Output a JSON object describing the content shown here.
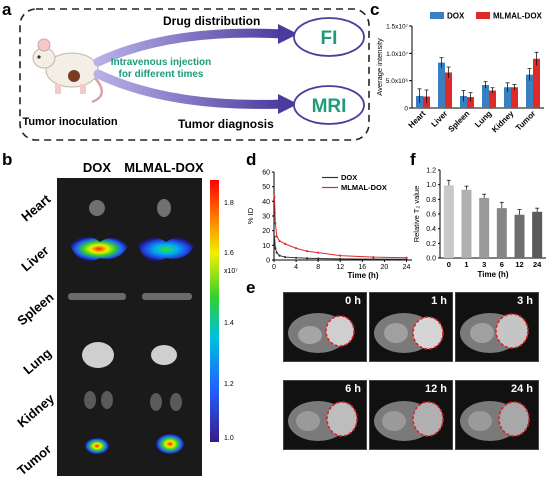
{
  "panel_labels": {
    "a": "a",
    "b": "b",
    "c": "c",
    "d": "d",
    "e": "e",
    "f": "f"
  },
  "panel_a": {
    "drug_distribution": "Drug distribution",
    "injection_line1": "Intravenous injection",
    "injection_line2": "for different times",
    "fi": "FI",
    "mri": "MRI",
    "tumor_inoculation": "Tumor inoculation",
    "tumor_diagnosis": "Tumor diagnosis",
    "colors": {
      "green_text": "#1a9e7a",
      "oval_text": "#1f9b78",
      "arrow": "#4a3c9e"
    }
  },
  "panel_b": {
    "col_headers": [
      "DOX",
      "MLMAL-DOX"
    ],
    "organs": [
      "Heart",
      "Liver",
      "Spleen",
      "Lung",
      "Kidney",
      "Tumor"
    ],
    "colorbar_ticks": [
      "1.8",
      "1.6",
      "1.4",
      "1.2",
      "1.0"
    ],
    "colorbar_unit": "x10⁷"
  },
  "chart_data": [
    {
      "panel": "c",
      "type": "bar",
      "categories": [
        "Heart",
        "Liver",
        "Spleen",
        "Lung",
        "Kidney",
        "Tumor"
      ],
      "series": [
        {
          "name": "DOX",
          "color": "#3a7fc0",
          "values": [
            2200000.0,
            8300000.0,
            2200000.0,
            4200000.0,
            3800000.0,
            6100000.0
          ],
          "errors": [
            1300000.0,
            900000.0,
            1000000.0,
            600000.0,
            800000.0,
            1100000.0
          ]
        },
        {
          "name": "MLMAL-DOX",
          "color": "#e02a2a",
          "values": [
            2100000.0,
            6500000.0,
            2000000.0,
            3200000.0,
            3800000.0,
            9000000.0
          ],
          "errors": [
            1200000.0,
            1000000.0,
            800000.0,
            500000.0,
            500000.0,
            1200000.0
          ]
        }
      ],
      "ylabel": "Average intensity",
      "ylim": [
        0,
        15000000
      ],
      "yticks": [
        "0",
        "5.0x10⁶",
        "1.0x10⁷",
        "1.5x10⁷"
      ],
      "legend": "top"
    },
    {
      "panel": "d",
      "type": "line",
      "series": [
        {
          "name": "DOX",
          "color": "#333333",
          "x": [
            0.083,
            0.25,
            0.5,
            1,
            2,
            4,
            6,
            8,
            12,
            18,
            24
          ],
          "y": [
            16,
            8,
            5,
            3,
            2,
            1.5,
            1.2,
            1.0,
            0.8,
            0.6,
            0.5
          ]
        },
        {
          "name": "MLMAL-DOX",
          "color": "#e02a2a",
          "x": [
            0.083,
            0.25,
            0.5,
            1,
            2,
            4,
            6,
            8,
            12,
            18,
            24
          ],
          "y": [
            43,
            25,
            16,
            13,
            11,
            8,
            6,
            5,
            3,
            2,
            1.5
          ]
        }
      ],
      "xlabel": "Time (h)",
      "ylabel": "% ID",
      "xlim": [
        0,
        25
      ],
      "ylim": [
        0,
        60
      ],
      "xticks": [
        0,
        4,
        8,
        12,
        16,
        20,
        24
      ],
      "yticks": [
        0,
        10,
        20,
        30,
        40,
        50,
        60
      ],
      "legend": "top-right"
    },
    {
      "panel": "f",
      "type": "bar",
      "categories": [
        "0",
        "1",
        "3",
        "6",
        "12",
        "24"
      ],
      "values": [
        0.99,
        0.93,
        0.82,
        0.68,
        0.59,
        0.63
      ],
      "errors": [
        0.07,
        0.05,
        0.05,
        0.08,
        0.07,
        0.05
      ],
      "colors": [
        "#c8c8c8",
        "#b0b0b0",
        "#9a9a9a",
        "#868686",
        "#6e6e6e",
        "#5a5a5a"
      ],
      "xlabel": "Time (h)",
      "ylabel": "Relative T₂ value",
      "ylim": [
        0,
        1.2
      ],
      "yticks": [
        "0.0",
        "0.2",
        "0.4",
        "0.6",
        "0.8",
        "1.0",
        "1.2"
      ]
    }
  ],
  "panel_e": {
    "timepoints": [
      "0 h",
      "1 h",
      "3 h",
      "6 h",
      "12 h",
      "24 h"
    ]
  }
}
